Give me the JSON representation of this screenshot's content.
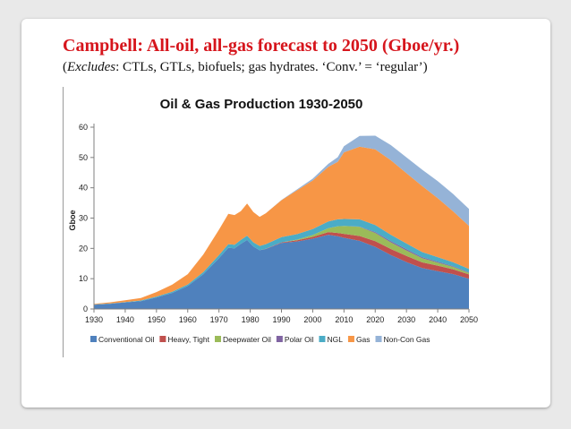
{
  "slide": {
    "title": "Campbell: All-oil, all-gas forecast to 2050 (Gboe/yr.)",
    "subtitle_open": "(",
    "subtitle_italic": "Excludes",
    "subtitle_rest": ": CTLs, GTLs, biofuels; gas hydrates. ‘Conv.’ = ‘regular’)"
  },
  "chart_data": {
    "type": "area",
    "stacked": true,
    "title": "Oil & Gas Production 1930-2050",
    "xlabel": "",
    "ylabel": "Gboe",
    "xlim": [
      1930,
      2050
    ],
    "ylim": [
      0,
      60
    ],
    "xticks": [
      1930,
      1940,
      1950,
      1960,
      1970,
      1980,
      1990,
      2000,
      2010,
      2020,
      2030,
      2040,
      2050
    ],
    "yticks": [
      0,
      10,
      20,
      30,
      40,
      50,
      60
    ],
    "grid": false,
    "legend_position": "bottom",
    "x": [
      1930,
      1935,
      1940,
      1945,
      1950,
      1955,
      1960,
      1965,
      1970,
      1973,
      1975,
      1977,
      1979,
      1981,
      1983,
      1985,
      1990,
      1995,
      2000,
      2005,
      2008,
      2010,
      2015,
      2020,
      2025,
      2030,
      2035,
      2040,
      2045,
      2050
    ],
    "series": [
      {
        "name": "Conventional Oil",
        "color": "#4f81bd",
        "values": [
          1.4,
          1.7,
          2.2,
          2.6,
          3.8,
          5.3,
          7.6,
          11.5,
          16.8,
          20.2,
          20.0,
          21.5,
          22.8,
          20.6,
          19.4,
          19.8,
          21.8,
          22.3,
          23.2,
          24.5,
          24.0,
          23.5,
          22.5,
          20.5,
          17.8,
          15.5,
          13.5,
          12.5,
          11.5,
          10.0
        ]
      },
      {
        "name": "Heavy, Tight",
        "color": "#c0504d",
        "values": [
          0,
          0,
          0,
          0,
          0,
          0,
          0,
          0,
          0,
          0,
          0,
          0,
          0,
          0,
          0,
          0.1,
          0.2,
          0.4,
          0.6,
          0.9,
          1.1,
          1.3,
          1.6,
          1.9,
          2.0,
          2.0,
          1.9,
          1.8,
          1.6,
          1.4
        ]
      },
      {
        "name": "Deepwater Oil",
        "color": "#9bbb59",
        "values": [
          0,
          0,
          0,
          0,
          0,
          0,
          0,
          0,
          0,
          0,
          0,
          0,
          0,
          0,
          0,
          0,
          0,
          0.2,
          0.6,
          1.3,
          2.2,
          2.6,
          3.0,
          2.7,
          2.2,
          1.8,
          1.4,
          1.0,
          0.8,
          0.5
        ]
      },
      {
        "name": "Polar Oil",
        "color": "#8064a2",
        "values": [
          0,
          0,
          0,
          0,
          0,
          0,
          0,
          0,
          0,
          0,
          0,
          0,
          0,
          0,
          0,
          0,
          0,
          0,
          0,
          0,
          0,
          0,
          0.1,
          0.3,
          0.4,
          0.4,
          0.3,
          0.3,
          0.2,
          0.2
        ]
      },
      {
        "name": "NGL",
        "color": "#4bacc6",
        "values": [
          0.1,
          0.1,
          0.1,
          0.2,
          0.3,
          0.4,
          0.5,
          0.7,
          1.0,
          1.2,
          1.2,
          1.3,
          1.4,
          1.4,
          1.4,
          1.5,
          1.7,
          1.8,
          2.0,
          2.2,
          2.3,
          2.3,
          2.4,
          2.3,
          2.1,
          1.9,
          1.7,
          1.5,
          1.3,
          1.1
        ]
      },
      {
        "name": "Gas",
        "color": "#f79646",
        "values": [
          0.2,
          0.4,
          0.6,
          0.8,
          1.5,
          2.3,
          3.4,
          5.8,
          8.4,
          10.0,
          9.8,
          9.5,
          10.6,
          10.0,
          9.6,
          10.2,
          12.2,
          14.5,
          16.0,
          18.0,
          19.0,
          22.0,
          24.0,
          25.0,
          24.6,
          23.2,
          21.8,
          19.5,
          16.8,
          14.2
        ]
      },
      {
        "name": "Non-Con Gas",
        "color": "#95b3d7",
        "values": [
          0,
          0,
          0,
          0,
          0,
          0,
          0,
          0,
          0,
          0,
          0,
          0,
          0,
          0,
          0,
          0,
          0.1,
          0.3,
          0.6,
          1.0,
          1.5,
          2.0,
          3.5,
          4.5,
          5.0,
          5.2,
          5.4,
          5.6,
          5.7,
          5.6
        ]
      }
    ]
  }
}
